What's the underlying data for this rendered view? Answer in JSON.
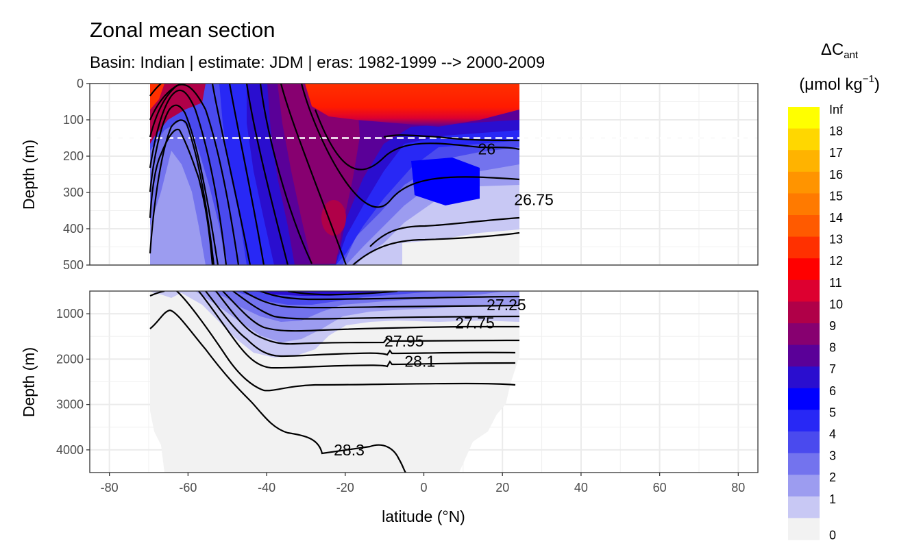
{
  "chart_data": {
    "type": "heatmap",
    "title": "Zonal mean section",
    "subtitle": "Basin: Indian | estimate: JDM  | eras: 1982-1999 --> 2000-2009",
    "xlabel": "latitude (°N)",
    "ylabel": "Depth (m)",
    "xlim": [
      -85,
      85
    ],
    "x_ticks": [
      -80,
      -60,
      -40,
      -20,
      0,
      20,
      40,
      60,
      80
    ],
    "panels": [
      {
        "name": "upper",
        "ylim": [
          0,
          500
        ],
        "y_ticks": [
          0,
          100,
          200,
          300,
          400,
          500
        ]
      },
      {
        "name": "lower",
        "ylim": [
          500,
          4500
        ],
        "y_ticks": [
          1000,
          2000,
          3000,
          4000
        ]
      }
    ],
    "mixed_layer_line_depth": 150,
    "data_extent_lat": [
      -69.5,
      24.5
    ],
    "contour_labels": [
      {
        "text": "26",
        "lat": 16,
        "depth": 180
      },
      {
        "text": "26.75",
        "lat": 28,
        "depth": 320
      },
      {
        "text": "27.25",
        "lat": 21,
        "depth": 800
      },
      {
        "text": "27.75",
        "lat": 13,
        "depth": 1200
      },
      {
        "text": "27.95",
        "lat": -5,
        "depth": 1600
      },
      {
        "text": "28.1",
        "lat": -1,
        "depth": 2050
      },
      {
        "text": "28.3",
        "lat": -19,
        "depth": 4000
      }
    ],
    "legend": {
      "title": "ΔC",
      "title_sub": "ant",
      "unit_prefix": "(μmol kg",
      "unit_sup": "−1",
      "unit_suffix": ")",
      "labels": [
        "Inf",
        "18",
        "17",
        "16",
        "15",
        "14",
        "13",
        "12",
        "11",
        "10",
        "9",
        "8",
        "7",
        "6",
        "5",
        "4",
        "3",
        "2",
        "1",
        "0"
      ],
      "colors": [
        "#ffff00",
        "#ffd700",
        "#ffb300",
        "#ff9400",
        "#ff7a00",
        "#ff5a00",
        "#ff3000",
        "#ff0000",
        "#dd0030",
        "#b00048",
        "#870070",
        "#5a0098",
        "#2a0ecf",
        "#0000ff",
        "#2828f5",
        "#4a4aee",
        "#7373ee",
        "#9c9cf0",
        "#c8c8f4",
        "#f2f2f2"
      ]
    }
  }
}
